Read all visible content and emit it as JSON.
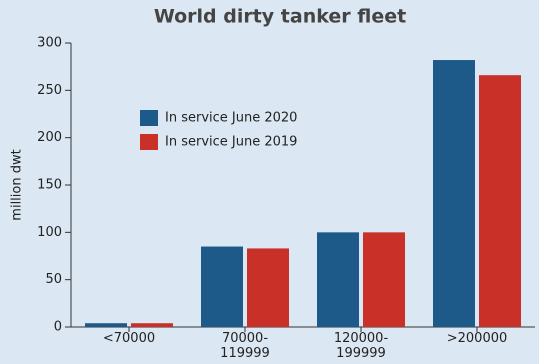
{
  "chart_data": {
    "type": "bar",
    "title": "World dirty tanker fleet",
    "y_label": "million dwt",
    "categories": [
      "<70000",
      "70000-119999",
      "120000-199999",
      ">200000"
    ],
    "series": [
      {
        "name": "In service June 2020",
        "color": "#1d5a8a",
        "values": [
          4,
          85,
          100,
          282
        ]
      },
      {
        "name": "In service June 2019",
        "color": "#c93128",
        "values": [
          4,
          83,
          100,
          266
        ]
      }
    ],
    "ylim": [
      0,
      300
    ],
    "yticks": [
      0,
      50,
      100,
      150,
      200,
      250,
      300
    ],
    "grid": false
  }
}
